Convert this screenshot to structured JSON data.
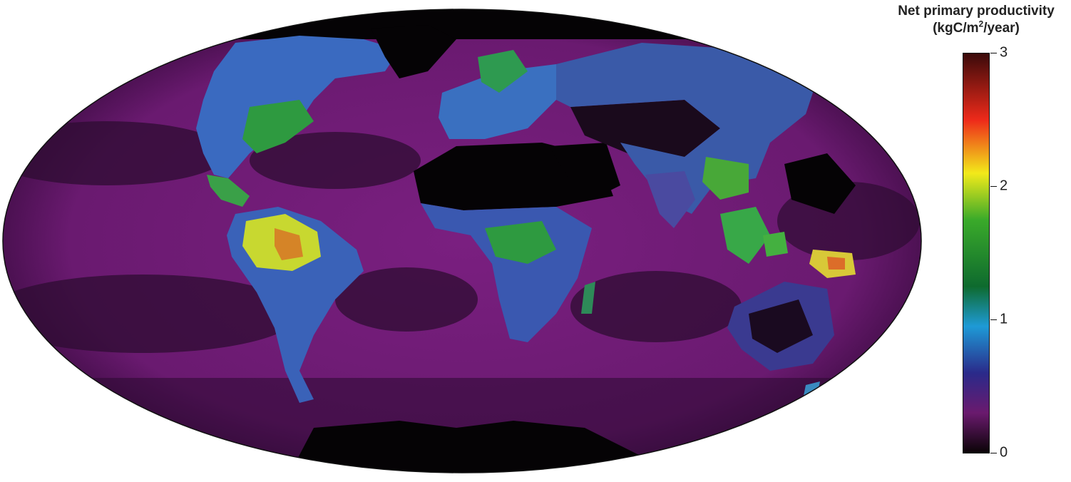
{
  "legend": {
    "title_line1": "Net primary productivity",
    "unit_prefix": "(kgC/m",
    "unit_sup": "2",
    "unit_suffix": "/year)",
    "min": 0,
    "max": 3,
    "ticks": [
      {
        "value": 3,
        "label": "3"
      },
      {
        "value": 2,
        "label": "2"
      },
      {
        "value": 1,
        "label": "1"
      },
      {
        "value": 0,
        "label": "0"
      }
    ],
    "colors": [
      {
        "value": 0.0,
        "color": "#0a0306"
      },
      {
        "value": 0.3,
        "color": "#6a1a6e"
      },
      {
        "value": 0.6,
        "color": "#2a2a8a"
      },
      {
        "value": 0.95,
        "color": "#1e9ad6"
      },
      {
        "value": 1.25,
        "color": "#0e6a2e"
      },
      {
        "value": 1.75,
        "color": "#3aaa2a"
      },
      {
        "value": 2.1,
        "color": "#f2ea1a"
      },
      {
        "value": 2.5,
        "color": "#ee2a1a"
      },
      {
        "value": 3.0,
        "color": "#3a0a0a"
      }
    ]
  },
  "map": {
    "projection": "mollweide",
    "ocean_color": "#7a2a7e",
    "desert_color": "#050305",
    "land_color": "#3858b8",
    "forest_color": "#2fa04a",
    "tropical_color": "#e8e030",
    "peak_color": "#e83020"
  }
}
